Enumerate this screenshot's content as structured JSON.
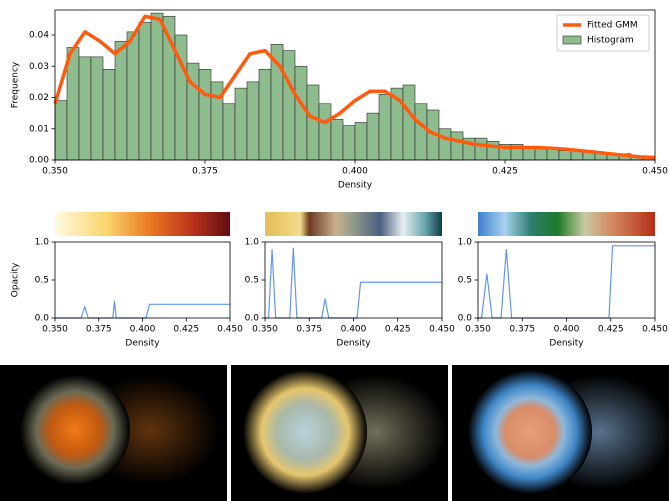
{
  "chart_data": [
    {
      "type": "histogram",
      "xlabel": "Density",
      "ylabel": "Frequency",
      "xlim": [
        0.35,
        0.45
      ],
      "xticks": [
        {
          "value": 0.35,
          "label": "0.350"
        },
        {
          "value": 0.375,
          "label": "0.375"
        },
        {
          "value": 0.4,
          "label": "0.400"
        },
        {
          "value": 0.425,
          "label": "0.425"
        },
        {
          "value": 0.45,
          "label": "0.450"
        }
      ],
      "ylim": [
        0,
        0.048
      ],
      "yticks": [
        {
          "value": 0,
          "label": "0.00"
        },
        {
          "value": 0.01,
          "label": "0.01"
        },
        {
          "value": 0.02,
          "label": "0.02"
        },
        {
          "value": 0.03,
          "label": "0.03"
        },
        {
          "value": 0.04,
          "label": "0.04"
        }
      ],
      "legend": "upper right",
      "series": [
        {
          "name": "Fitted GMM",
          "type": "line",
          "color": "#ff5a0e",
          "x": [
            0.35,
            0.3525,
            0.355,
            0.3575,
            0.36,
            0.3625,
            0.365,
            0.3675,
            0.37,
            0.3725,
            0.375,
            0.3775,
            0.38,
            0.3825,
            0.385,
            0.3875,
            0.39,
            0.3925,
            0.395,
            0.3975,
            0.4,
            0.4025,
            0.405,
            0.4075,
            0.41,
            0.4125,
            0.415,
            0.4175,
            0.42,
            0.4225,
            0.425,
            0.4275,
            0.43,
            0.4325,
            0.435,
            0.4375,
            0.44,
            0.4425,
            0.445,
            0.4475,
            0.45
          ],
          "values": [
            0.018,
            0.034,
            0.041,
            0.038,
            0.034,
            0.038,
            0.046,
            0.045,
            0.035,
            0.025,
            0.021,
            0.02,
            0.027,
            0.034,
            0.035,
            0.03,
            0.021,
            0.014,
            0.012,
            0.015,
            0.019,
            0.022,
            0.022,
            0.019,
            0.013,
            0.009,
            0.007,
            0.006,
            0.005,
            0.0045,
            0.004,
            0.004,
            0.004,
            0.0038,
            0.0035,
            0.003,
            0.0025,
            0.002,
            0.0015,
            0.001,
            0.0008
          ]
        },
        {
          "name": "Histogram",
          "type": "histogram",
          "color": "#8fbc8f",
          "bins": [
            0.35,
            0.352,
            0.354,
            0.356,
            0.358,
            0.36,
            0.362,
            0.364,
            0.366,
            0.368,
            0.37,
            0.372,
            0.374,
            0.376,
            0.378,
            0.38,
            0.382,
            0.384,
            0.386,
            0.388,
            0.39,
            0.392,
            0.394,
            0.396,
            0.398,
            0.4,
            0.402,
            0.404,
            0.406,
            0.408,
            0.41,
            0.412,
            0.414,
            0.416,
            0.418,
            0.42,
            0.422,
            0.424,
            0.426,
            0.428,
            0.43,
            0.432,
            0.434,
            0.436,
            0.438,
            0.44,
            0.442,
            0.444,
            0.446,
            0.448,
            0.45
          ],
          "values": [
            0.019,
            0.036,
            0.033,
            0.033,
            0.029,
            0.038,
            0.041,
            0.044,
            0.047,
            0.046,
            0.04,
            0.031,
            0.029,
            0.025,
            0.018,
            0.023,
            0.025,
            0.029,
            0.037,
            0.035,
            0.03,
            0.024,
            0.018,
            0.013,
            0.011,
            0.012,
            0.015,
            0.021,
            0.023,
            0.024,
            0.018,
            0.016,
            0.01,
            0.009,
            0.007,
            0.007,
            0.006,
            0.005,
            0.005,
            0.004,
            0.004,
            0.004,
            0.003,
            0.003,
            0.003,
            0.002,
            0.002,
            0.002,
            0.001,
            0.001
          ]
        }
      ]
    },
    {
      "type": "line",
      "xlabel": "Density",
      "ylabel": "Opacity",
      "xlim": [
        0.35,
        0.45
      ],
      "xticks": [
        {
          "value": 0.35,
          "label": "0.350"
        },
        {
          "value": 0.375,
          "label": "0.375"
        },
        {
          "value": 0.4,
          "label": "0.400"
        },
        {
          "value": 0.425,
          "label": "0.425"
        },
        {
          "value": 0.45,
          "label": "0.450"
        }
      ],
      "ylim": [
        0,
        1
      ],
      "yticks": [
        {
          "value": 0,
          "label": "0.0"
        },
        {
          "value": 0.5,
          "label": "0.5"
        },
        {
          "value": 1,
          "label": "1.0"
        }
      ],
      "series": [
        {
          "type": "line",
          "color": "#6495ed",
          "x": [
            0.35,
            0.365,
            0.367,
            0.369,
            0.383,
            0.384,
            0.385,
            0.402,
            0.404,
            0.45
          ],
          "values": [
            0,
            0,
            0.15,
            0,
            0,
            0.22,
            0,
            0,
            0.18,
            0.18
          ]
        }
      ]
    },
    {
      "type": "line",
      "xlabel": "Density",
      "xlim": [
        0.35,
        0.45
      ],
      "xticks": [
        {
          "value": 0.35,
          "label": "0.350"
        },
        {
          "value": 0.375,
          "label": "0.375"
        },
        {
          "value": 0.4,
          "label": "0.400"
        },
        {
          "value": 0.425,
          "label": "0.425"
        },
        {
          "value": 0.45,
          "label": "0.450"
        }
      ],
      "ylim": [
        0,
        1
      ],
      "yticks": [
        {
          "value": 0,
          "label": "0.0"
        },
        {
          "value": 0.5,
          "label": "0.5"
        },
        {
          "value": 1,
          "label": "1.0"
        }
      ],
      "series": [
        {
          "type": "line",
          "color": "#6495ed",
          "x": [
            0.35,
            0.352,
            0.354,
            0.356,
            0.364,
            0.366,
            0.368,
            0.382,
            0.384,
            0.386,
            0.402,
            0.404,
            0.45
          ],
          "values": [
            0,
            0,
            0.9,
            0,
            0,
            0.92,
            0,
            0,
            0.25,
            0,
            0,
            0.47,
            0.47
          ]
        }
      ]
    },
    {
      "type": "line",
      "xlabel": "Density",
      "xlim": [
        0.35,
        0.45
      ],
      "xticks": [
        {
          "value": 0.35,
          "label": "0.350"
        },
        {
          "value": 0.375,
          "label": "0.375"
        },
        {
          "value": 0.4,
          "label": "0.400"
        },
        {
          "value": 0.425,
          "label": "0.425"
        },
        {
          "value": 0.45,
          "label": "0.450"
        }
      ],
      "ylim": [
        0,
        1
      ],
      "yticks": [
        {
          "value": 0,
          "label": "0.0"
        },
        {
          "value": 0.5,
          "label": "0.5"
        },
        {
          "value": 1,
          "label": "1.0"
        }
      ],
      "series": [
        {
          "type": "line",
          "color": "#6495ed",
          "x": [
            0.35,
            0.352,
            0.355,
            0.358,
            0.363,
            0.366,
            0.369,
            0.424,
            0.426,
            0.45
          ],
          "values": [
            0,
            0,
            0.58,
            0,
            0,
            0.9,
            0,
            0,
            0.95,
            0.95
          ]
        }
      ]
    }
  ]
}
